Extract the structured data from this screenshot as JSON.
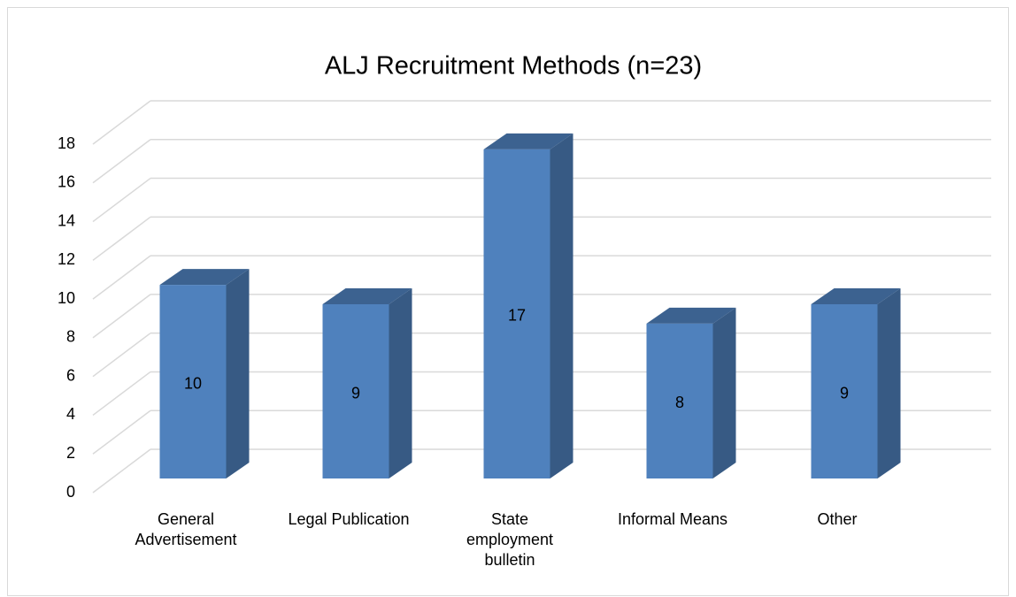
{
  "chart_data": {
    "type": "bar3d",
    "title": "ALJ Recruitment Methods (n=23)",
    "categories": [
      "General Advertisement",
      "Legal Publication",
      "State employment bulletin",
      "Informal Means",
      "Other"
    ],
    "values": [
      10,
      9,
      17,
      8,
      9
    ],
    "color": "#4f81bd",
    "ylim": [
      0,
      18
    ],
    "yticks": [
      0,
      2,
      4,
      6,
      8,
      10,
      12,
      14,
      16,
      18
    ],
    "grid": true
  }
}
